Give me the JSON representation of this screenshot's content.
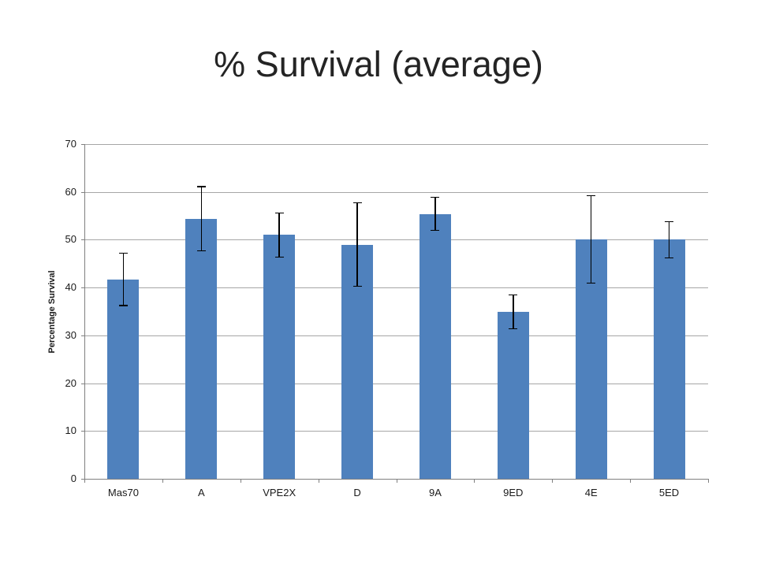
{
  "chart_data": {
    "type": "bar",
    "title": "% Survival (average)",
    "xlabel": "",
    "ylabel": "Percentage Survival",
    "categories": [
      "Mas70",
      "A",
      "VPE2X",
      "D",
      "9A",
      "9ED",
      "4E",
      "5ED"
    ],
    "values": [
      41.7,
      54.4,
      51,
      49,
      55.4,
      35,
      50,
      50
    ],
    "error_low": [
      36.2,
      47.7,
      46.4,
      40.3,
      52,
      31.4,
      40.9,
      46.2
    ],
    "error_high": [
      47.2,
      61.1,
      55.6,
      57.7,
      58.9,
      38.5,
      59.2,
      53.8
    ],
    "ylim": [
      0,
      70
    ],
    "yticks": [
      0,
      10,
      20,
      30,
      40,
      50,
      60,
      70
    ],
    "grid": true,
    "legend": false,
    "colors": {
      "bar": "#4F81BD",
      "gridline": "#A6A6A6",
      "axis": "#808080",
      "error_bar": "#000000",
      "title_text": "#242424",
      "background": "#FFFFFF"
    }
  }
}
